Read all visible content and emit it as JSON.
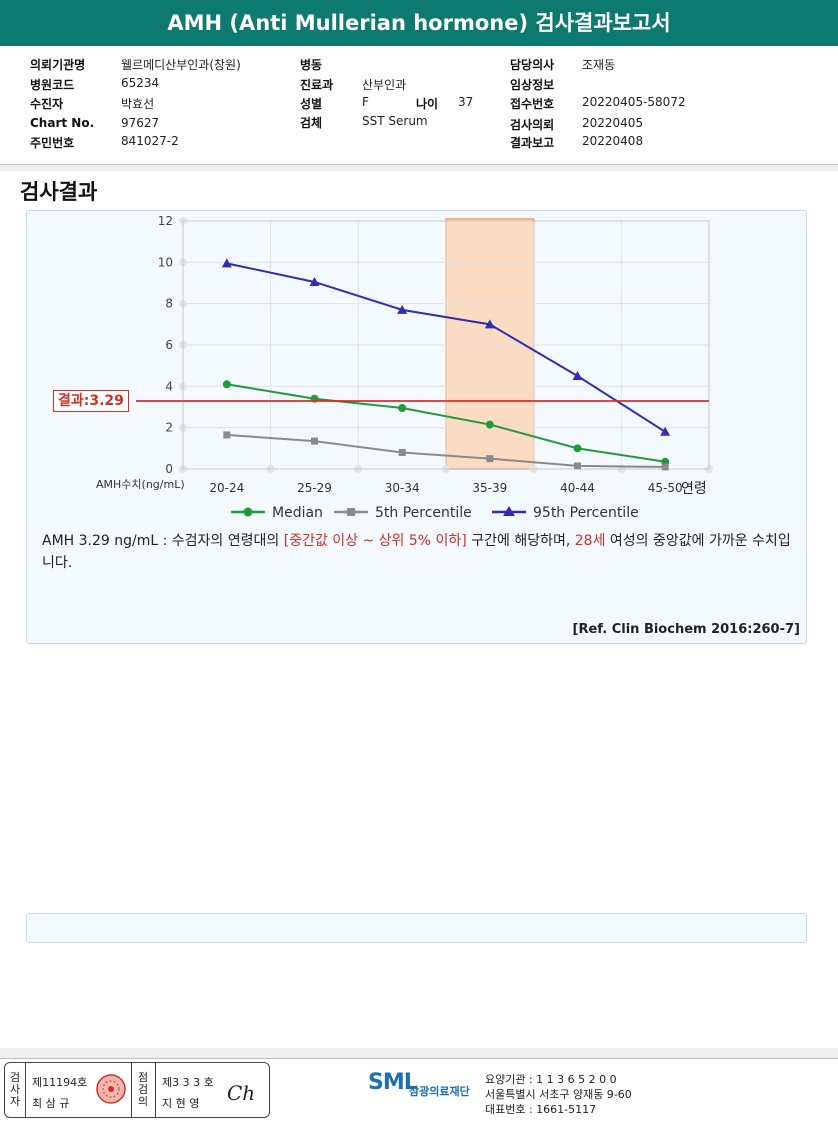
{
  "header": {
    "title": "AMH (Anti Mullerian hormone) 검사결과보고서"
  },
  "info": {
    "institution_label": "의뢰기관명",
    "institution": "웰르메디산부인과(창원)",
    "hospital_code_label": "병원코드",
    "hospital_code": "65234",
    "patient_label": "수진자",
    "patient": "박효선",
    "chart_label": "Chart No.",
    "chart": "97627",
    "resident_label": "주민번호",
    "resident": "841027-2",
    "ward_label": "병동",
    "ward": "",
    "dept_label": "진료과",
    "dept": "산부인과",
    "sex_label": "성별",
    "sex": "F",
    "age_label": "나이",
    "age": "37",
    "specimen_label": "검체",
    "specimen": "SST Serum",
    "doctor_label": "담당의사",
    "doctor": "조재동",
    "clinical_label": "임상정보",
    "clinical": "",
    "receipt_label": "접수번호",
    "receipt": "20220405-58072",
    "request_label": "검사의뢰",
    "request": "20220405",
    "report_label": "결과보고",
    "report": "20220408"
  },
  "section_title": "검사결과",
  "chart_data": {
    "type": "line",
    "categories": [
      "20-24",
      "25-29",
      "30-34",
      "35-39",
      "40-44",
      "45-50"
    ],
    "xlabel": "연령",
    "ylabel": "AMH수치(ng/mL)",
    "ylim": [
      0,
      12
    ],
    "yticks": [
      0,
      2,
      4,
      6,
      8,
      10,
      12
    ],
    "grid": true,
    "legend": "bottom",
    "highlight_category": "35-39",
    "highlight_color": "#fbdcc3",
    "result_line": {
      "label": "결과:3.29",
      "value": 3.29,
      "color": "#d0302a"
    },
    "series": [
      {
        "name": "Median",
        "values": [
          4.1,
          3.4,
          2.95,
          2.15,
          1.0,
          0.35
        ],
        "color": "#229a3a",
        "marker": "circle"
      },
      {
        "name": "5th Percentile",
        "values": [
          1.65,
          1.35,
          0.8,
          0.5,
          0.15,
          0.1
        ],
        "color": "#8a8a8a",
        "marker": "square"
      },
      {
        "name": "95th Percentile",
        "values": [
          9.95,
          9.05,
          7.7,
          7.0,
          4.5,
          1.8
        ],
        "color": "#2e2fb0",
        "marker": "triangle"
      }
    ]
  },
  "description": {
    "part1": "AMH  3.29 ng/mL : 수검자의 연령대의 ",
    "highlight1": "[중간값 이상 ~ 상위 5% 이하]",
    "part2": " 구간에 해당하며, ",
    "highlight2": "28세",
    "part3": " 여성의 중앙값에 가까운 수치입니다."
  },
  "reference": "[Ref. Clin Biochem 2016:260-7]",
  "footer": {
    "examiner_v": "검사자",
    "examiner_no": "제11194호",
    "examiner_name": "최 삼 규",
    "inspector_v": "점검의",
    "inspector_no": "제3 3 3 호",
    "inspector_name": "지 현 영",
    "signature": "Ch",
    "logo": "SML",
    "logo_kr": "삼광의료재단",
    "line1": "요양기관 : 1 1 3 6 5 2 0 0",
    "line2": "서울특별시 서초구 양재동 9-60",
    "line3": "대표번호 : 1661-5117"
  }
}
